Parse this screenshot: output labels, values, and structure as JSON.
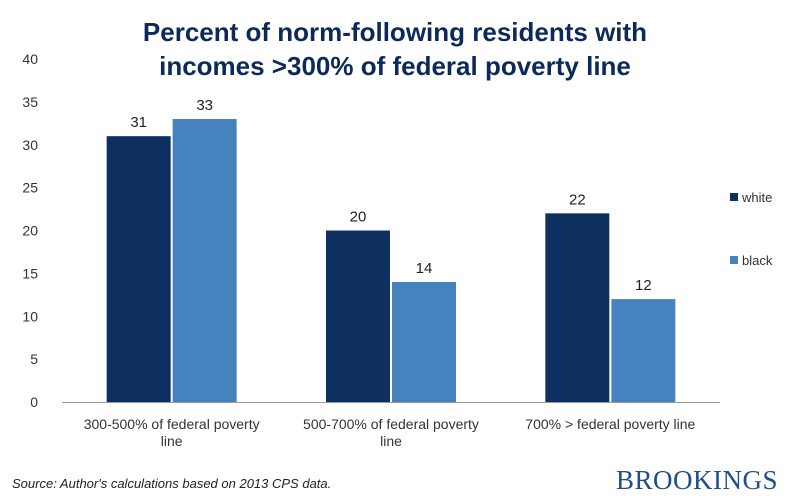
{
  "chart_data": {
    "type": "bar",
    "title_lines": [
      "Percent of norm-following residents with",
      "incomes >300% of federal poverty line"
    ],
    "categories": [
      [
        "300-500% of federal poverty",
        "line"
      ],
      [
        "500-700% of federal poverty",
        "line"
      ],
      [
        "700% > federal poverty line"
      ]
    ],
    "series": [
      {
        "name": "white",
        "values": [
          31,
          20,
          22
        ],
        "color": "#0d3060"
      },
      {
        "name": "black",
        "values": [
          33,
          14,
          12
        ],
        "color": "#4682be"
      }
    ],
    "yticks": [
      0,
      5,
      10,
      15,
      20,
      25,
      30,
      35,
      40
    ],
    "ylim": [
      0,
      40
    ],
    "xlabel": "",
    "ylabel": "",
    "legend_position": "right",
    "grid": false
  },
  "source": "Source: Author's calculations based on 2013 CPS data.",
  "brand": "BROOKINGS"
}
